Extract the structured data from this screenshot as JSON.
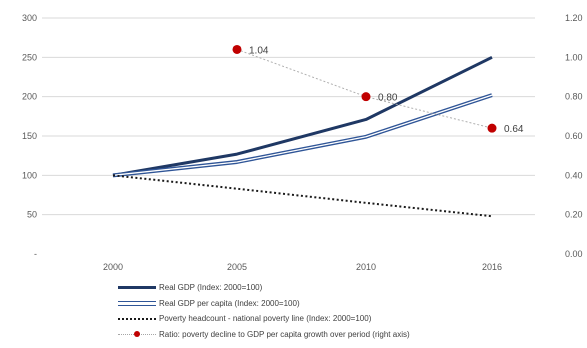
{
  "chart_data": {
    "type": "line",
    "categories": [
      "2000",
      "2005",
      "2010",
      "2016"
    ],
    "y_left": {
      "ylim": [
        0,
        300
      ],
      "ticks": [
        "-",
        "50",
        "100",
        "150",
        "200",
        "250",
        "300"
      ],
      "tick_values": [
        0,
        50,
        100,
        150,
        200,
        250,
        300
      ]
    },
    "y_right": {
      "ylim": [
        0,
        1.2
      ],
      "ticks": [
        "0.00",
        "0.20",
        "0.40",
        "0.60",
        "0.80",
        "1.00",
        "1.20"
      ],
      "tick_values": [
        0,
        0.2,
        0.4,
        0.6,
        0.8,
        1.0,
        1.2
      ]
    },
    "grid": true,
    "legend_position": "bottom-left",
    "series": [
      {
        "name": "Real GDP (Index: 2000=100)",
        "axis": "left",
        "style": "solid-thick",
        "color": "#1f3864",
        "values": [
          100,
          127,
          171,
          250
        ]
      },
      {
        "name": "Real GDP per capita (Index: 2000=100)",
        "axis": "left",
        "style": "double",
        "color": "#2f5597",
        "values": [
          100,
          117,
          149,
          202
        ]
      },
      {
        "name": "Poverty headcount - national poverty line (Index: 2000=100)",
        "axis": "left",
        "style": "dotted",
        "color": "#1a1a1a",
        "values": [
          100,
          83,
          65,
          48
        ]
      },
      {
        "name": "Ratio: poverty decline to GDP per capita growth over period (right axis)",
        "axis": "right",
        "style": "dots",
        "color": "#c00000",
        "values": [
          null,
          1.04,
          0.8,
          0.64
        ],
        "data_labels": [
          "",
          "1.04",
          "0.80",
          "0.64"
        ]
      }
    ]
  }
}
